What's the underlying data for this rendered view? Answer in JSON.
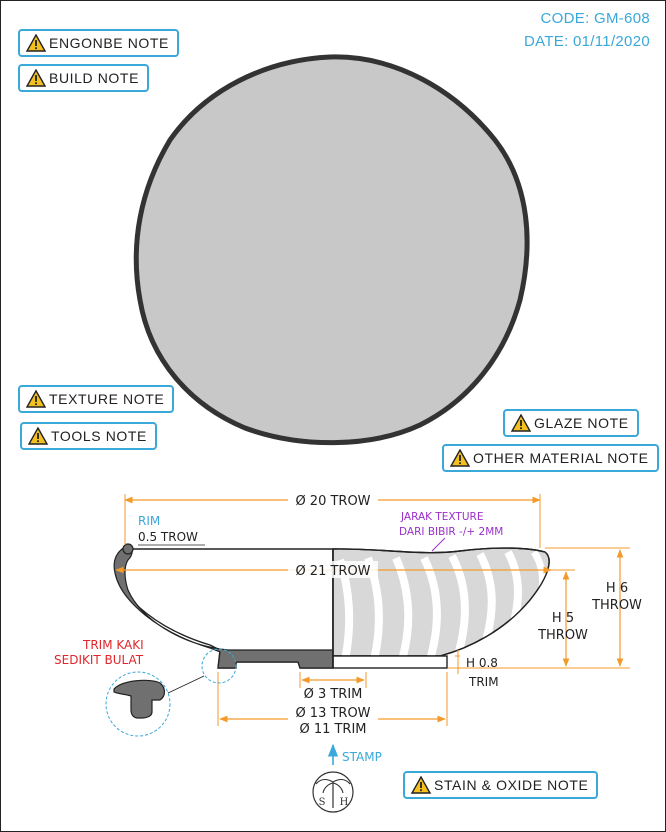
{
  "header": {
    "code": "CODE: GM-608",
    "date": "DATE: 01/11/2020"
  },
  "notes": {
    "engobe": "ENGONBE NOTE",
    "build": "BUILD NOTE",
    "texture": "TEXTURE NOTE",
    "tools": "TOOLS NOTE",
    "glaze": "GLAZE NOTE",
    "other_material": "OTHER MATERIAL NOTE",
    "stain_oxide": "STAIN & OXIDE NOTE"
  },
  "icons": {
    "note_icon": "warning-triangle-icon",
    "stamp_logo": "sh-palm-stamp-icon"
  },
  "colors": {
    "accent": "#3aa8d8",
    "dimension": "#f39a2b",
    "annotation_red": "#e0262b",
    "annotation_purple": "#9b30c8",
    "body_fill": "#c8c8c8",
    "section_fill": "#707070"
  },
  "dimensions": {
    "top_diameter": "Ø 20 TROW",
    "rim_label": "RIM",
    "rim_thickness": "0.5 TROW",
    "max_diameter": "Ø 21 TROW",
    "texture_note_line1": "JARAK TEXTURE",
    "texture_note_line2": "DARI BIBIR -/+ 2MM",
    "height_total_1": "H 6",
    "height_total_2": "THROW",
    "height_inner_1": "H 5",
    "height_inner_2": "THROW",
    "foot_height_1": "H 0.8",
    "foot_height_2": "TRIM",
    "trim_note_1": "TRIM KAKI",
    "trim_note_2": "SEDIKIT BULAT",
    "center_trim": "Ø 3 TRIM",
    "base_trow": "Ø 13 TROW",
    "foot_trim": "Ø 11 TRIM",
    "stamp": "STAMP"
  }
}
